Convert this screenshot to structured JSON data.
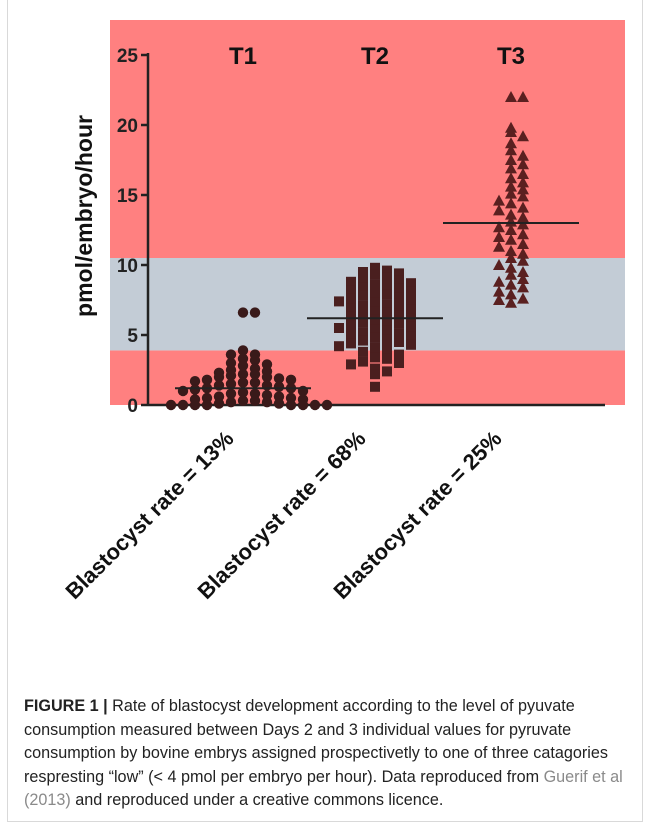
{
  "chart_data": {
    "type": "scatter",
    "ylabel": "pmol/embryo/hour",
    "yticks": [
      "0",
      "5",
      "10",
      "15",
      "20",
      "25"
    ],
    "ylim": [
      0,
      25
    ],
    "groups": [
      "T1",
      "T2",
      "T3"
    ],
    "categories": [
      "Blastocyst rate = 13%",
      "Blastocyst rate = 68%",
      "Blastocyst rate = 25%"
    ],
    "bands": [
      {
        "from": 0,
        "to": 3.9,
        "color": "#ff8080"
      },
      {
        "from": 3.9,
        "to": 10.5,
        "color": "#c3ccd6"
      },
      {
        "from": 10.5,
        "to": 25.5,
        "color": "#ff8080"
      }
    ],
    "medians": [
      1.2,
      6.2,
      13.0
    ],
    "marker_colors": {
      "T1": "#3a1a1a",
      "T2": "#4a1f1f",
      "T3": "#5a2020"
    },
    "series": [
      {
        "marker": "circle",
        "values": [
          6.6,
          6.6,
          3.9,
          3.6,
          3.6,
          3.3,
          3.2,
          3.0,
          2.9,
          2.8,
          2.6,
          2.5,
          2.4,
          2.3,
          2.2,
          2.2,
          2.1,
          2.0,
          2.0,
          1.9,
          1.8,
          1.8,
          1.7,
          1.6,
          1.6,
          1.5,
          1.4,
          1.4,
          1.3,
          1.2,
          1.2,
          1.1,
          1.0,
          1.0,
          0.9,
          0.8,
          0.8,
          0.7,
          0.6,
          0.6,
          0.5,
          0.5,
          0.4,
          0.4,
          0.3,
          0.3,
          0.2,
          0.2,
          0.1,
          0.1,
          0.0,
          0.0,
          0.0,
          0.0,
          0.0,
          0.0,
          0.0,
          0.0
        ]
      },
      {
        "marker": "square",
        "values": [
          9.8,
          9.6,
          9.5,
          9.4,
          9.3,
          9.1,
          9.0,
          8.9,
          8.8,
          8.7,
          8.6,
          8.5,
          8.4,
          8.3,
          8.2,
          8.1,
          8.0,
          7.9,
          7.8,
          7.7,
          7.6,
          7.5,
          7.4,
          7.3,
          7.2,
          7.1,
          7.0,
          6.9,
          6.8,
          6.7,
          6.6,
          6.5,
          6.4,
          6.3,
          6.2,
          6.1,
          6.0,
          5.9,
          5.8,
          5.7,
          5.6,
          5.5,
          5.4,
          5.3,
          5.2,
          5.1,
          5.0,
          4.9,
          4.8,
          4.7,
          4.6,
          4.5,
          4.4,
          4.3,
          4.2,
          4.1,
          4.0,
          3.8,
          3.6,
          3.4,
          3.3,
          3.1,
          3.0,
          2.9,
          2.6,
          2.4,
          2.2,
          1.3
        ]
      },
      {
        "marker": "triangle",
        "values": [
          22.0,
          22.0,
          19.8,
          19.5,
          19.2,
          18.7,
          18.2,
          17.8,
          17.5,
          17.2,
          16.9,
          16.5,
          16.2,
          15.9,
          15.6,
          15.4,
          15.1,
          14.9,
          14.6,
          14.4,
          14.1,
          13.9,
          13.6,
          13.4,
          13.1,
          12.9,
          12.7,
          12.5,
          12.2,
          12.0,
          11.8,
          11.5,
          11.3,
          11.0,
          10.8,
          10.5,
          10.3,
          10.0,
          9.8,
          9.5,
          9.3,
          9.0,
          8.8,
          8.6,
          8.4,
          8.1,
          7.9,
          7.6,
          7.5,
          7.3
        ]
      }
    ]
  },
  "caption": {
    "label": "FIGURE 1 |",
    "text_before": " Rate of blastocyst development according to the level of pyuvate consumption measured between Days 2 and 3 individual values for pyruvate consumption by bovine embrys assigned prospectivetly to one of three catagories respresting “low” (< 4 pmol per embryo per hour). Data reproduced from ",
    "link": "Guerif et al (2013)",
    "text_after": " and reproduced under a creative commons licence."
  }
}
